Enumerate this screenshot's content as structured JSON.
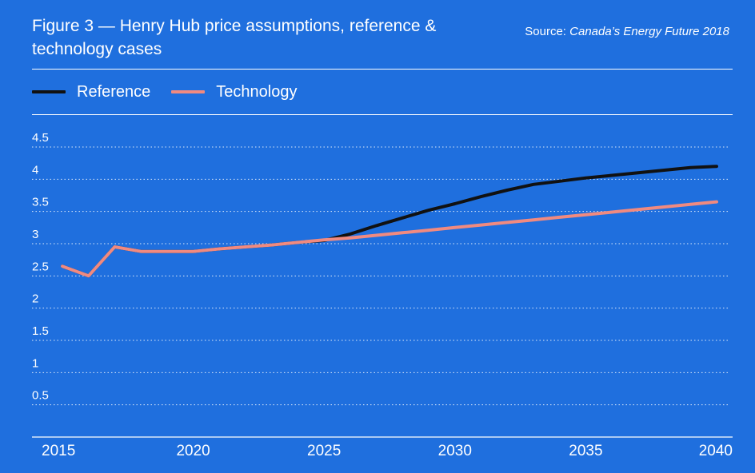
{
  "header": {
    "title": "Figure 3 — Henry Hub price assumptions, reference & technology cases",
    "source_prefix": "Source: ",
    "source_name": "Canada’s Energy Future 2018"
  },
  "colors": {
    "background": "#1f6fde",
    "reference": "#111111",
    "technology": "#f08a80",
    "grid": "#ffffff"
  },
  "chart_data": {
    "type": "line",
    "title": "Figure 3 — Henry Hub price assumptions, reference & technology cases",
    "xlabel": "",
    "ylabel": "",
    "xlim": [
      2015,
      2040
    ],
    "ylim": [
      0,
      4.5
    ],
    "x_ticks": [
      "2015",
      "2020",
      "2025",
      "2030",
      "2035",
      "2040"
    ],
    "y_ticks": [
      "4.5",
      "4",
      "3.5",
      "3",
      "2.5",
      "2",
      "1.5",
      "1",
      "0.5"
    ],
    "grid": true,
    "legend": "top-left",
    "series": [
      {
        "name": "Reference",
        "color": "#111111",
        "x": [
          2015,
          2016,
          2017,
          2018,
          2019,
          2020,
          2021,
          2022,
          2023,
          2024,
          2025,
          2026,
          2027,
          2028,
          2029,
          2030,
          2031,
          2032,
          2033,
          2034,
          2035,
          2036,
          2037,
          2038,
          2039,
          2040
        ],
        "values": [
          2.65,
          2.5,
          2.95,
          2.88,
          2.88,
          2.88,
          2.92,
          2.95,
          2.98,
          3.02,
          3.05,
          3.15,
          3.28,
          3.4,
          3.52,
          3.62,
          3.73,
          3.83,
          3.92,
          3.97,
          4.02,
          4.06,
          4.1,
          4.14,
          4.18,
          4.2
        ]
      },
      {
        "name": "Technology",
        "color": "#f08a80",
        "x": [
          2015,
          2016,
          2017,
          2018,
          2019,
          2020,
          2021,
          2022,
          2023,
          2024,
          2025,
          2026,
          2027,
          2028,
          2029,
          2030,
          2031,
          2032,
          2033,
          2034,
          2035,
          2036,
          2037,
          2038,
          2039,
          2040
        ],
        "values": [
          2.65,
          2.5,
          2.95,
          2.88,
          2.88,
          2.88,
          2.92,
          2.95,
          2.98,
          3.02,
          3.06,
          3.09,
          3.13,
          3.17,
          3.21,
          3.25,
          3.29,
          3.33,
          3.37,
          3.41,
          3.45,
          3.49,
          3.53,
          3.57,
          3.61,
          3.65
        ]
      }
    ]
  }
}
